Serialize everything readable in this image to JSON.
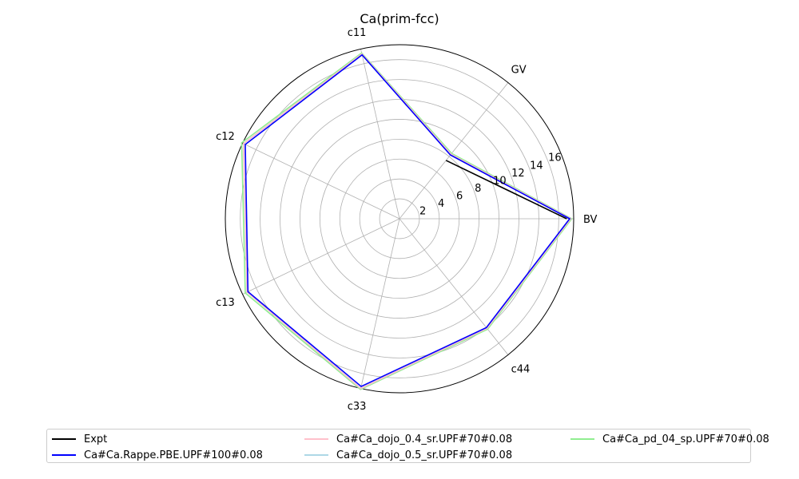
{
  "chart_data": {
    "type": "radar",
    "title": "Ca(prim-fcc)",
    "axes": [
      "BV",
      "GV",
      "c11",
      "c12",
      "c13",
      "c33",
      "c44"
    ],
    "radial_ticks": [
      2,
      4,
      6,
      8,
      10,
      12,
      14,
      16
    ],
    "radial_range": [
      0,
      17.5
    ],
    "grid": true,
    "legend_position": "bottom",
    "series": [
      {
        "name": "Expt",
        "color": "#000000",
        "values": [
          16.8,
          7.5
        ]
      },
      {
        "name": "Ca#Ca.Rappe.PBE.UPF#100#0.08",
        "color": "#0000ff",
        "values": [
          17.1,
          8.2,
          16.9,
          17.2,
          16.9,
          17.3,
          14.0
        ]
      },
      {
        "name": "Ca#Ca_dojo_0.4_sr.UPF#70#0.08",
        "color": "#ffc0cb",
        "values": [
          17.2,
          8.3,
          17.0,
          17.4,
          17.0,
          17.5,
          14.1
        ]
      },
      {
        "name": "Ca#Ca_dojo_0.5_sr.UPF#70#0.08",
        "color": "#add8e6",
        "values": [
          17.2,
          8.3,
          17.0,
          17.4,
          17.0,
          17.5,
          14.1
        ]
      },
      {
        "name": "Ca#Ca_pd_04_sp.UPF#70#0.08",
        "color": "#90ee90",
        "values": [
          17.3,
          8.4,
          17.1,
          17.6,
          17.2,
          17.6,
          14.2
        ]
      }
    ]
  }
}
